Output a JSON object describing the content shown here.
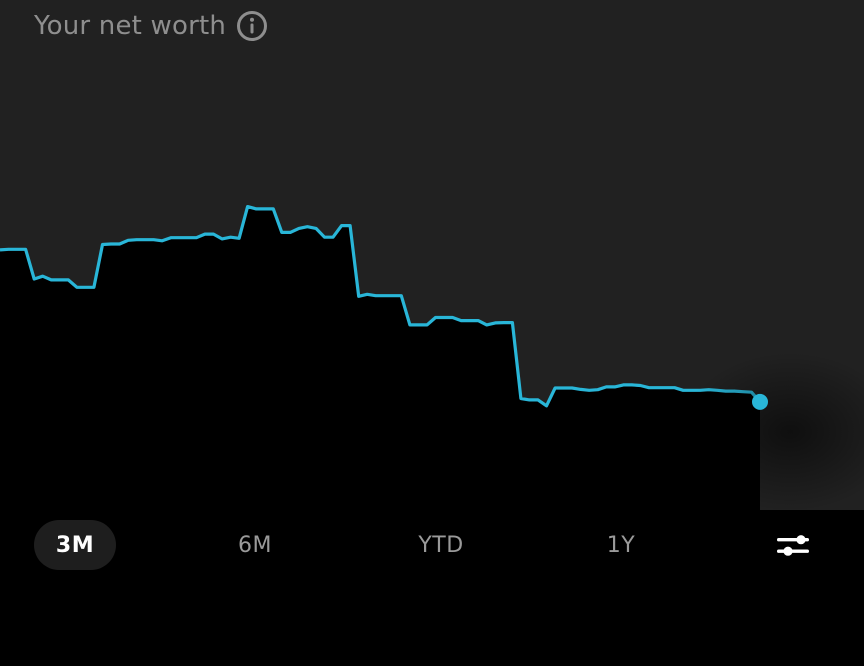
{
  "header": {
    "title": "Your net worth",
    "info_icon": "info-icon"
  },
  "time_ranges": [
    {
      "label": "3M",
      "active": true
    },
    {
      "label": "6M",
      "active": false
    },
    {
      "label": "YTD",
      "active": false
    },
    {
      "label": "1Y",
      "active": false
    }
  ],
  "filter_icon": "sliders-icon",
  "colors": {
    "line": "#29b6d8",
    "chart_background": "#212121",
    "fill_under_line": "#000000",
    "page_background": "#000000"
  },
  "chart_data": {
    "type": "area",
    "title": "",
    "xlabel": "",
    "ylabel": "",
    "grid": false,
    "ylim": [
      0,
      100
    ],
    "x": [
      0,
      1,
      2,
      3,
      4,
      5,
      6,
      7,
      8,
      9,
      10,
      11,
      12,
      13,
      14,
      15,
      16,
      17,
      18,
      19,
      20,
      21,
      22,
      23,
      24,
      25,
      26,
      27,
      28,
      29,
      30,
      31,
      32,
      33,
      34,
      35,
      36,
      37,
      38,
      39,
      40,
      41,
      42,
      43,
      44,
      45,
      46,
      47,
      48,
      49,
      50,
      51,
      52,
      53,
      54,
      55,
      56,
      57,
      58,
      59,
      60,
      61,
      62,
      63,
      64,
      65,
      66,
      67,
      68,
      69,
      70,
      71,
      72,
      73,
      74,
      75,
      76,
      77,
      78,
      79,
      80,
      81,
      82,
      83,
      84,
      85,
      86,
      87,
      88,
      89
    ],
    "values": [
      70.0,
      70.2,
      70.2,
      70.2,
      59.7,
      60.7,
      59.4,
      59.4,
      59.4,
      56.8,
      56.8,
      56.8,
      71.9,
      72.1,
      72.1,
      73.4,
      73.6,
      73.6,
      73.6,
      73.2,
      74.3,
      74.3,
      74.3,
      74.3,
      75.6,
      75.6,
      73.9,
      74.5,
      74.1,
      85.3,
      84.5,
      84.5,
      84.5,
      76.2,
      76.2,
      77.6,
      78.2,
      77.6,
      74.5,
      74.5,
      78.6,
      78.6,
      53.6,
      54.3,
      53.8,
      53.8,
      53.8,
      53.8,
      43.5,
      43.5,
      43.5,
      46.1,
      46.1,
      46.1,
      45.0,
      45.0,
      45.0,
      43.5,
      44.2,
      44.3,
      44.3,
      17.5,
      17.0,
      17.0,
      14.9,
      21.2,
      21.2,
      21.2,
      20.7,
      20.4,
      20.6,
      21.6,
      21.6,
      22.3,
      22.3,
      22.1,
      21.3,
      21.3,
      21.3,
      21.3,
      20.4,
      20.4,
      20.4,
      20.6,
      20.4,
      20.1,
      20.1,
      19.9,
      19.7,
      16.3
    ]
  }
}
